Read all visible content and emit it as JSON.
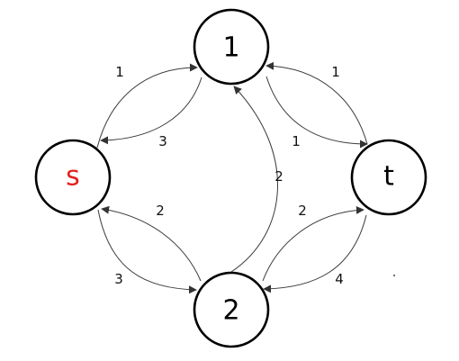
{
  "nodes": {
    "source": {
      "label": "s",
      "color": "#e02020"
    },
    "node1": {
      "label": "1",
      "color": "#000000"
    },
    "node2": {
      "label": "2",
      "color": "#000000"
    },
    "sink": {
      "label": "t",
      "color": "#000000"
    }
  },
  "edges": [
    {
      "from": "s",
      "to": "1",
      "label": "1"
    },
    {
      "from": "1",
      "to": "s",
      "label": "3"
    },
    {
      "from": "s",
      "to": "2",
      "label": "3"
    },
    {
      "from": "2",
      "to": "s",
      "label": "2"
    },
    {
      "from": "2",
      "to": "1",
      "label": "2"
    },
    {
      "from": "1",
      "to": "t",
      "label": "1"
    },
    {
      "from": "t",
      "to": "1",
      "label": "1"
    },
    {
      "from": "2",
      "to": "t",
      "label": "2"
    },
    {
      "from": "t",
      "to": "2",
      "label": "4"
    }
  ]
}
